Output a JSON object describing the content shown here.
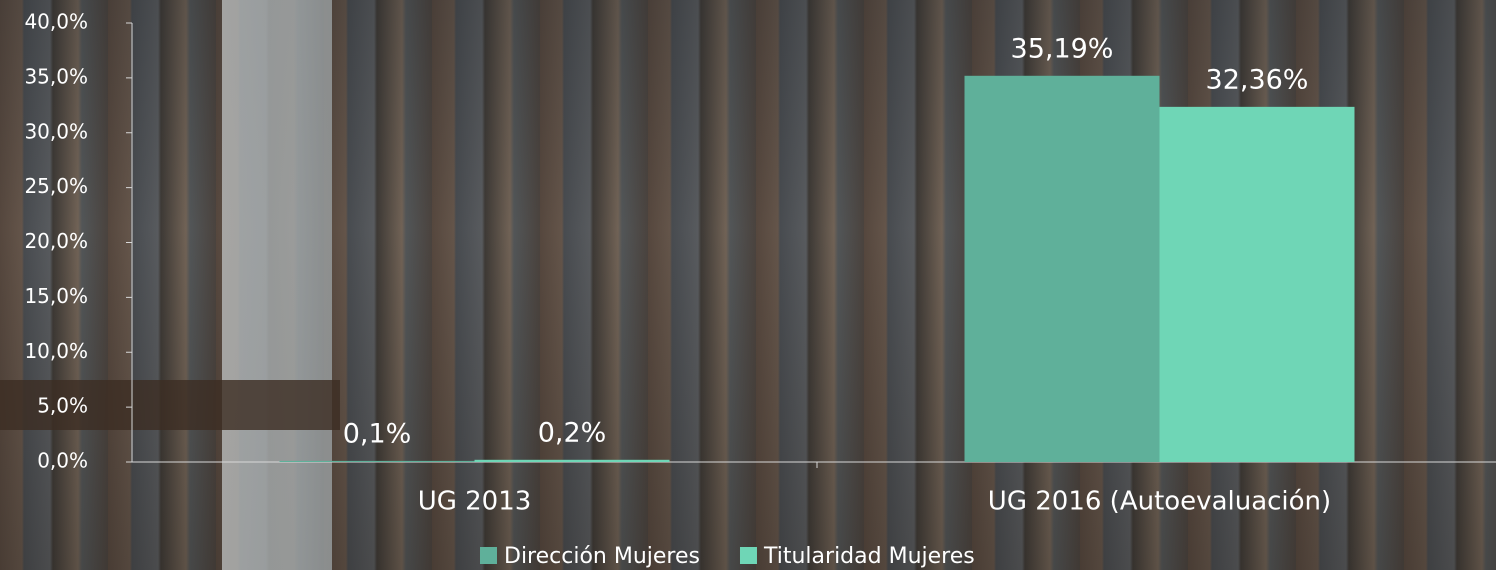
{
  "chart_data": {
    "type": "bar",
    "categories": [
      "UG 2013",
      "UG 2016 (Autoevaluación)"
    ],
    "series": [
      {
        "name": "Dirección Mujeres",
        "color": "#5fb09a",
        "values": [
          0.1,
          35.19
        ],
        "value_labels": [
          "0,1%",
          "35,19%"
        ]
      },
      {
        "name": "Titularidad Mujeres",
        "color": "#6fd6b6",
        "values": [
          0.2,
          32.36
        ],
        "value_labels": [
          "0,2%",
          "32,36%"
        ]
      }
    ],
    "ylim": [
      0,
      40
    ],
    "yticks": [
      {
        "value": 0,
        "label": "0,0%"
      },
      {
        "value": 5,
        "label": "5,0%"
      },
      {
        "value": 10,
        "label": "10,0%"
      },
      {
        "value": 15,
        "label": "15,0%"
      },
      {
        "value": 20,
        "label": "20,0%"
      },
      {
        "value": 25,
        "label": "25,0%"
      },
      {
        "value": 30,
        "label": "30,0%"
      },
      {
        "value": 35,
        "label": "35,0%"
      },
      {
        "value": 40,
        "label": "40,0%"
      }
    ],
    "legend": "bottom"
  }
}
